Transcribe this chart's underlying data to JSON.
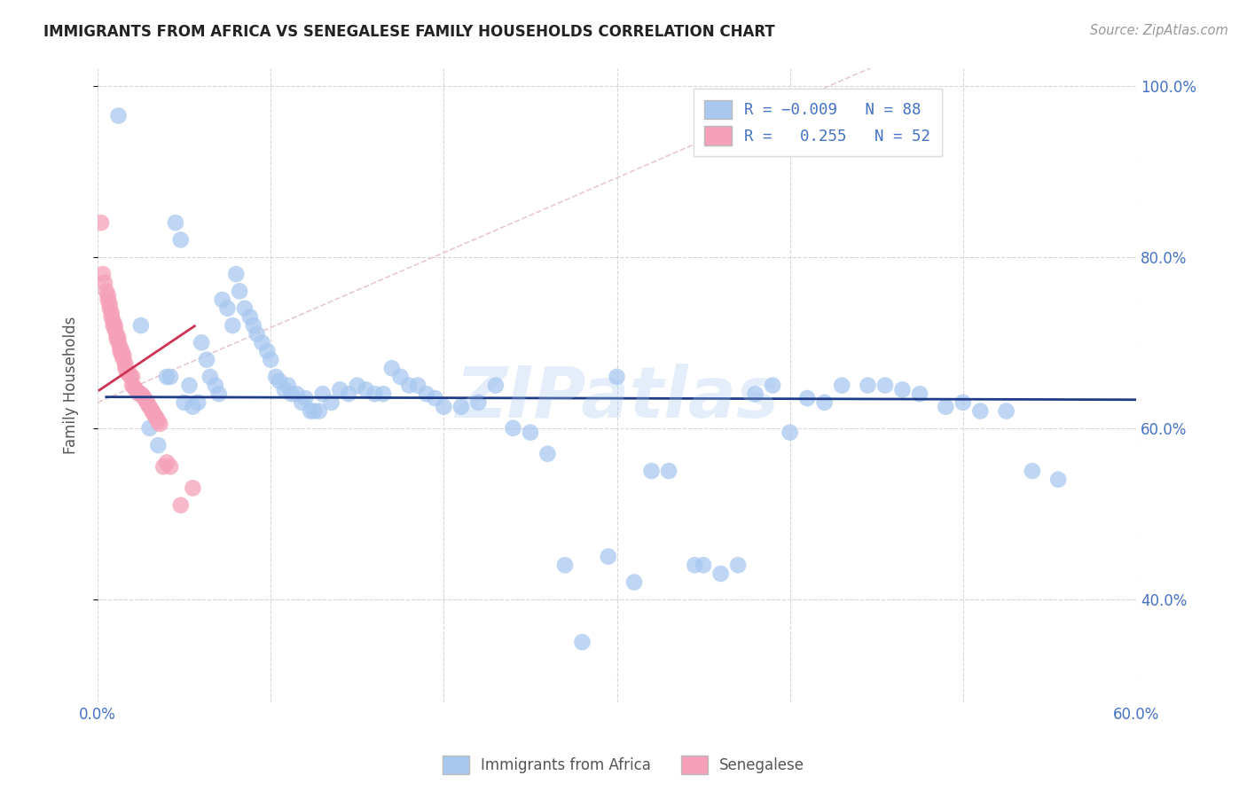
{
  "title": "IMMIGRANTS FROM AFRICA VS SENEGALESE FAMILY HOUSEHOLDS CORRELATION CHART",
  "source": "Source: ZipAtlas.com",
  "ylabel": "Family Households",
  "xlim": [
    0.0,
    0.6
  ],
  "ylim": [
    0.28,
    1.02
  ],
  "x_ticks": [
    0.0,
    0.1,
    0.2,
    0.3,
    0.4,
    0.5,
    0.6
  ],
  "x_tick_labels": [
    "0.0%",
    "",
    "",
    "",
    "",
    "",
    "60.0%"
  ],
  "y_ticks": [
    0.4,
    0.6,
    0.8,
    1.0
  ],
  "y_tick_labels": [
    "40.0%",
    "60.0%",
    "80.0%",
    "100.0%"
  ],
  "legend_bottom_blue": "Immigrants from Africa",
  "legend_bottom_pink": "Senegalese",
  "blue_color": "#a8c8f0",
  "pink_color": "#f5a0b8",
  "blue_line_color": "#1f3c88",
  "pink_line_color": "#cc3355",
  "diagonal_color": "#e8c8d0",
  "watermark": "ZIPatlas",
  "blue_scatter_x": [
    0.012,
    0.025,
    0.03,
    0.035,
    0.04,
    0.042,
    0.045,
    0.048,
    0.05,
    0.053,
    0.055,
    0.058,
    0.06,
    0.063,
    0.065,
    0.068,
    0.07,
    0.072,
    0.075,
    0.078,
    0.08,
    0.082,
    0.085,
    0.088,
    0.09,
    0.092,
    0.095,
    0.098,
    0.1,
    0.103,
    0.105,
    0.108,
    0.11,
    0.112,
    0.115,
    0.118,
    0.12,
    0.123,
    0.125,
    0.128,
    0.13,
    0.135,
    0.14,
    0.145,
    0.15,
    0.155,
    0.16,
    0.165,
    0.17,
    0.175,
    0.18,
    0.185,
    0.19,
    0.195,
    0.2,
    0.21,
    0.22,
    0.23,
    0.24,
    0.25,
    0.26,
    0.27,
    0.28,
    0.295,
    0.31,
    0.33,
    0.35,
    0.37,
    0.39,
    0.41,
    0.43,
    0.455,
    0.475,
    0.5,
    0.525,
    0.555,
    0.3,
    0.32,
    0.345,
    0.36,
    0.38,
    0.4,
    0.42,
    0.445,
    0.465,
    0.49,
    0.51,
    0.54
  ],
  "blue_scatter_y": [
    0.965,
    0.72,
    0.6,
    0.58,
    0.66,
    0.66,
    0.84,
    0.82,
    0.63,
    0.65,
    0.625,
    0.63,
    0.7,
    0.68,
    0.66,
    0.65,
    0.64,
    0.75,
    0.74,
    0.72,
    0.78,
    0.76,
    0.74,
    0.73,
    0.72,
    0.71,
    0.7,
    0.69,
    0.68,
    0.66,
    0.655,
    0.645,
    0.65,
    0.64,
    0.64,
    0.63,
    0.635,
    0.62,
    0.62,
    0.62,
    0.64,
    0.63,
    0.645,
    0.64,
    0.65,
    0.645,
    0.64,
    0.64,
    0.67,
    0.66,
    0.65,
    0.65,
    0.64,
    0.635,
    0.625,
    0.625,
    0.63,
    0.65,
    0.6,
    0.595,
    0.57,
    0.44,
    0.35,
    0.45,
    0.42,
    0.55,
    0.44,
    0.44,
    0.65,
    0.635,
    0.65,
    0.65,
    0.64,
    0.63,
    0.62,
    0.54,
    0.66,
    0.55,
    0.44,
    0.43,
    0.64,
    0.595,
    0.63,
    0.65,
    0.645,
    0.625,
    0.62,
    0.55
  ],
  "pink_scatter_x": [
    0.002,
    0.003,
    0.004,
    0.005,
    0.006,
    0.006,
    0.007,
    0.007,
    0.008,
    0.008,
    0.009,
    0.009,
    0.01,
    0.01,
    0.011,
    0.011,
    0.012,
    0.012,
    0.013,
    0.013,
    0.014,
    0.014,
    0.015,
    0.015,
    0.016,
    0.016,
    0.017,
    0.018,
    0.019,
    0.02,
    0.02,
    0.021,
    0.022,
    0.023,
    0.024,
    0.025,
    0.026,
    0.027,
    0.028,
    0.029,
    0.03,
    0.031,
    0.032,
    0.033,
    0.034,
    0.035,
    0.036,
    0.038,
    0.04,
    0.042,
    0.048,
    0.055
  ],
  "pink_scatter_y": [
    0.84,
    0.78,
    0.77,
    0.76,
    0.75,
    0.755,
    0.74,
    0.745,
    0.735,
    0.73,
    0.725,
    0.72,
    0.72,
    0.715,
    0.71,
    0.705,
    0.705,
    0.7,
    0.695,
    0.69,
    0.69,
    0.685,
    0.685,
    0.68,
    0.675,
    0.67,
    0.665,
    0.665,
    0.66,
    0.66,
    0.65,
    0.648,
    0.645,
    0.643,
    0.64,
    0.64,
    0.638,
    0.635,
    0.632,
    0.628,
    0.625,
    0.622,
    0.618,
    0.615,
    0.612,
    0.608,
    0.605,
    0.555,
    0.56,
    0.555,
    0.51,
    0.53
  ]
}
